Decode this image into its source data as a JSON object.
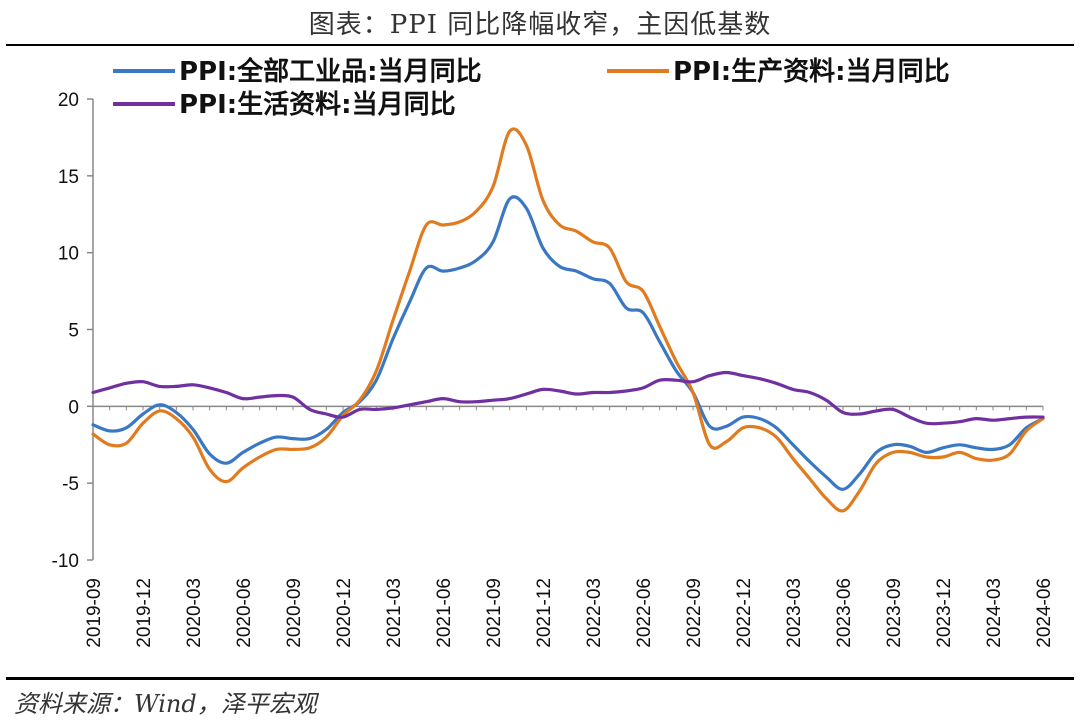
{
  "header": {
    "title": "图表：PPI 同比降幅收窄，主因低基数"
  },
  "footer": {
    "source": "资料来源：Wind，泽平宏观"
  },
  "chart_data": {
    "type": "line",
    "title": "图表：PPI 同比降幅收窄，主因低基数",
    "xlabel": "",
    "ylabel": "",
    "ylim": [
      -10,
      20
    ],
    "yticks": [
      -10,
      -5,
      0,
      5,
      10,
      15,
      20
    ],
    "grid": false,
    "legend_position": "top",
    "x": [
      "2019-09",
      "2019-10",
      "2019-11",
      "2019-12",
      "2020-01",
      "2020-02",
      "2020-03",
      "2020-04",
      "2020-05",
      "2020-06",
      "2020-07",
      "2020-08",
      "2020-09",
      "2020-10",
      "2020-11",
      "2020-12",
      "2021-01",
      "2021-02",
      "2021-03",
      "2021-04",
      "2021-05",
      "2021-06",
      "2021-07",
      "2021-08",
      "2021-09",
      "2021-10",
      "2021-11",
      "2021-12",
      "2022-01",
      "2022-02",
      "2022-03",
      "2022-04",
      "2022-05",
      "2022-06",
      "2022-07",
      "2022-08",
      "2022-09",
      "2022-10",
      "2022-11",
      "2022-12",
      "2023-01",
      "2023-02",
      "2023-03",
      "2023-04",
      "2023-05",
      "2023-06",
      "2023-07",
      "2023-08",
      "2023-09",
      "2023-10",
      "2023-11",
      "2023-12",
      "2024-01",
      "2024-02",
      "2024-03",
      "2024-04",
      "2024-05",
      "2024-06"
    ],
    "xtick_labels": [
      "2019-09",
      "2019-12",
      "2020-03",
      "2020-06",
      "2020-09",
      "2020-12",
      "2021-03",
      "2021-06",
      "2021-09",
      "2021-12",
      "2022-03",
      "2022-06",
      "2022-09",
      "2022-12",
      "2023-03",
      "2023-06",
      "2023-09",
      "2023-12",
      "2024-03",
      "2024-06"
    ],
    "series": [
      {
        "name": "PPI:全部工业品:当月同比",
        "color": "#3A78C3",
        "values": [
          -1.2,
          -1.6,
          -1.4,
          -0.5,
          0.1,
          -0.4,
          -1.5,
          -3.1,
          -3.7,
          -3.0,
          -2.4,
          -2.0,
          -2.1,
          -2.1,
          -1.5,
          -0.4,
          0.3,
          1.7,
          4.4,
          6.8,
          9.0,
          8.8,
          9.0,
          9.5,
          10.7,
          13.5,
          12.9,
          10.3,
          9.1,
          8.8,
          8.3,
          8.0,
          6.4,
          6.1,
          4.2,
          2.3,
          0.9,
          -1.3,
          -1.3,
          -0.7,
          -0.8,
          -1.4,
          -2.5,
          -3.6,
          -4.6,
          -5.4,
          -4.4,
          -3.0,
          -2.5,
          -2.6,
          -3.0,
          -2.7,
          -2.5,
          -2.7,
          -2.8,
          -2.5,
          -1.4,
          -0.8
        ]
      },
      {
        "name": "PPI:生产资料:当月同比",
        "color": "#E07B1F",
        "values": [
          -1.8,
          -2.5,
          -2.4,
          -1.1,
          -0.3,
          -0.8,
          -2.0,
          -4.1,
          -4.9,
          -4.0,
          -3.3,
          -2.8,
          -2.8,
          -2.7,
          -2.0,
          -0.6,
          0.4,
          2.3,
          5.6,
          8.8,
          11.8,
          11.8,
          12.0,
          12.7,
          14.3,
          17.9,
          17.0,
          13.4,
          11.8,
          11.4,
          10.7,
          10.3,
          8.1,
          7.5,
          5.2,
          2.9,
          0.9,
          -2.5,
          -2.3,
          -1.4,
          -1.4,
          -2.0,
          -3.4,
          -4.7,
          -6.0,
          -6.8,
          -5.5,
          -3.7,
          -3.0,
          -3.0,
          -3.3,
          -3.3,
          -3.0,
          -3.4,
          -3.5,
          -3.1,
          -1.6,
          -0.8
        ]
      },
      {
        "name": "PPI:生活资料:当月同比",
        "color": "#7030A0",
        "values": [
          0.9,
          1.2,
          1.5,
          1.6,
          1.3,
          1.3,
          1.4,
          1.2,
          0.9,
          0.5,
          0.6,
          0.7,
          0.6,
          -0.2,
          -0.5,
          -0.7,
          -0.2,
          -0.2,
          -0.1,
          0.1,
          0.3,
          0.5,
          0.3,
          0.3,
          0.4,
          0.5,
          0.8,
          1.1,
          1.0,
          0.8,
          0.9,
          0.9,
          1.0,
          1.2,
          1.7,
          1.7,
          1.6,
          2.0,
          2.2,
          2.0,
          1.8,
          1.5,
          1.1,
          0.9,
          0.4,
          -0.4,
          -0.5,
          -0.3,
          -0.2,
          -0.7,
          -1.1,
          -1.1,
          -1.0,
          -0.8,
          -0.9,
          -0.8,
          -0.7,
          -0.7
        ]
      }
    ]
  }
}
